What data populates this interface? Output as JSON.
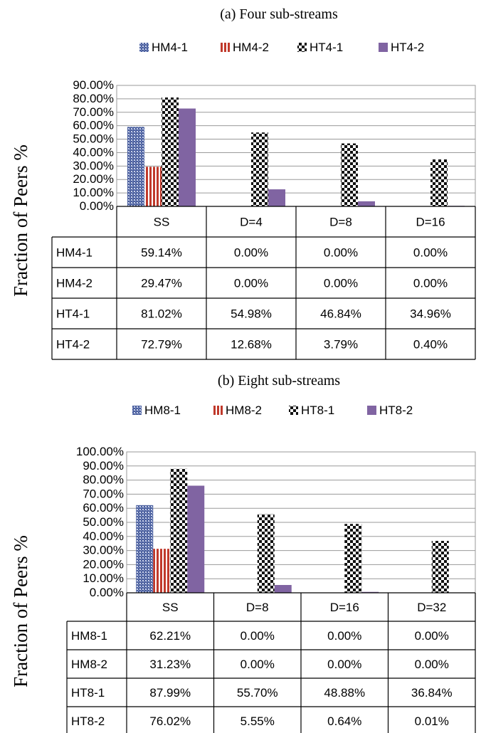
{
  "chart_data": [
    {
      "type": "bar",
      "title": "(a) Four sub-streams",
      "ylabel": "Fraction of Peers %",
      "ylim": [
        0,
        90
      ],
      "yticks": [
        "90.00%",
        "80.00%",
        "70.00%",
        "60.00%",
        "50.00%",
        "40.00%",
        "30.00%",
        "20.00%",
        "10.00%",
        "0.00%"
      ],
      "grid": true,
      "legend_position": "top",
      "categories": [
        "SS",
        "D=4",
        "D=8",
        "D=16"
      ],
      "series": [
        {
          "name": "HM4-1",
          "pattern": "dots-blue",
          "color": "#4a5f9e",
          "values": [
            59.14,
            0.0,
            0.0,
            0.0
          ],
          "labels": [
            "59.14%",
            "0.00%",
            "0.00%",
            "0.00%"
          ]
        },
        {
          "name": "HM4-2",
          "pattern": "vstripes-red",
          "color": "#c0392b",
          "values": [
            29.47,
            0.0,
            0.0,
            0.0
          ],
          "labels": [
            "29.47%",
            "0.00%",
            "0.00%",
            "0.00%"
          ]
        },
        {
          "name": "HT4-1",
          "pattern": "checker-black",
          "color": "#111111",
          "values": [
            81.02,
            54.98,
            46.84,
            34.96
          ],
          "labels": [
            "81.02%",
            "54.98%",
            "46.84%",
            "34.96%"
          ]
        },
        {
          "name": "HT4-2",
          "pattern": "solid-purple",
          "color": "#8064a2",
          "values": [
            72.79,
            12.68,
            3.79,
            0.4
          ],
          "labels": [
            "72.79%",
            "12.68%",
            "3.79%",
            "0.40%"
          ]
        }
      ]
    },
    {
      "type": "bar",
      "title": "(b) Eight sub-streams",
      "ylabel": "Fraction of Peers %",
      "ylim": [
        0,
        100
      ],
      "yticks": [
        "100.00%",
        "90.00%",
        "80.00%",
        "70.00%",
        "60.00%",
        "50.00%",
        "40.00%",
        "30.00%",
        "20.00%",
        "10.00%",
        "0.00%"
      ],
      "grid": true,
      "legend_position": "top",
      "categories": [
        "SS",
        "D=8",
        "D=16",
        "D=32"
      ],
      "series": [
        {
          "name": "HM8-1",
          "pattern": "dots-blue",
          "color": "#4a5f9e",
          "values": [
            62.21,
            0.0,
            0.0,
            0.0
          ],
          "labels": [
            "62.21%",
            "0.00%",
            "0.00%",
            "0.00%"
          ]
        },
        {
          "name": "HM8-2",
          "pattern": "vstripes-red",
          "color": "#c0392b",
          "values": [
            31.23,
            0.0,
            0.0,
            0.0
          ],
          "labels": [
            "31.23%",
            "0.00%",
            "0.00%",
            "0.00%"
          ]
        },
        {
          "name": "HT8-1",
          "pattern": "checker-black",
          "color": "#111111",
          "values": [
            87.99,
            55.7,
            48.88,
            36.84
          ],
          "labels": [
            "87.99%",
            "55.70%",
            "48.88%",
            "36.84%"
          ]
        },
        {
          "name": "HT8-2",
          "pattern": "solid-purple",
          "color": "#8064a2",
          "values": [
            76.02,
            5.55,
            0.64,
            0.01
          ],
          "labels": [
            "76.02%",
            "5.55%",
            "0.64%",
            "0.01%"
          ]
        }
      ]
    }
  ],
  "legend_swatch_colors": {
    "dots-blue": "#4a5f9e",
    "vstripes-red": "#c0392b",
    "checker-black": "#111111",
    "solid-purple": "#8064a2"
  }
}
